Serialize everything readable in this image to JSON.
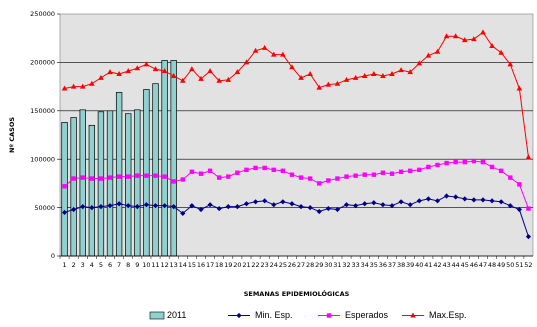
{
  "chart_data": {
    "type": "bar",
    "xlabel": "SEMANAS EPIDEMIOLÓGICAS",
    "ylabel": "Nº CASOS",
    "ylim": [
      0,
      250000
    ],
    "yticks": [
      "0",
      "50000",
      "100000",
      "150000",
      "200000",
      "250000"
    ],
    "grid": true,
    "legend_position": "bottom",
    "categories": [
      "1",
      "2",
      "3",
      "4",
      "5",
      "6",
      "7",
      "8",
      "9",
      "10",
      "11",
      "12",
      "13",
      "14",
      "15",
      "16",
      "17",
      "18",
      "19",
      "20",
      "21",
      "22",
      "23",
      "24",
      "25",
      "26",
      "27",
      "28",
      "29",
      "30",
      "31",
      "32",
      "33",
      "34",
      "35",
      "36",
      "37",
      "38",
      "39",
      "40",
      "41",
      "42",
      "43",
      "44",
      "45",
      "46",
      "47",
      "48",
      "49",
      "50",
      "51",
      "52"
    ],
    "bar_series": {
      "name": "2011",
      "color": "#8fd1cf",
      "values": [
        138000,
        143000,
        151000,
        135000,
        149000,
        150000,
        169000,
        147000,
        151000,
        172000,
        178000,
        202000,
        202000
      ]
    },
    "series": [
      {
        "name": "Min. Esp.",
        "color": "#00008b",
        "marker": "diamond",
        "values": [
          45000,
          48000,
          51000,
          50000,
          51000,
          52000,
          54000,
          52000,
          51000,
          53000,
          52000,
          52000,
          51000,
          44000,
          52000,
          48000,
          53000,
          49000,
          51000,
          51000,
          54000,
          56000,
          57000,
          53000,
          56000,
          54000,
          51000,
          50000,
          46000,
          49000,
          48000,
          53000,
          52000,
          54000,
          55000,
          53000,
          52000,
          56000,
          53000,
          57000,
          59000,
          57000,
          62000,
          61000,
          59000,
          58000,
          58000,
          57000,
          56000,
          52000,
          48000,
          20000
        ]
      },
      {
        "name": "Esperados",
        "color": "#ff00ff",
        "marker": "square",
        "values": [
          72000,
          80000,
          81000,
          80000,
          80000,
          81000,
          82000,
          82000,
          83000,
          83000,
          83000,
          82000,
          77000,
          79000,
          87000,
          85000,
          88000,
          81000,
          82000,
          86000,
          89000,
          91000,
          91000,
          89000,
          88000,
          84000,
          81000,
          80000,
          75000,
          78000,
          80000,
          82000,
          83000,
          84000,
          84000,
          86000,
          85000,
          87000,
          88000,
          89000,
          92000,
          94000,
          96000,
          97000,
          97000,
          98000,
          97000,
          92000,
          88000,
          81000,
          74000,
          49000
        ]
      },
      {
        "name": "Max.Esp.",
        "color": "#ff0000",
        "marker": "triangle",
        "values": [
          173000,
          175000,
          175000,
          178000,
          184000,
          190000,
          188000,
          191000,
          194000,
          198000,
          193000,
          191000,
          186000,
          181000,
          193000,
          183000,
          191000,
          181000,
          182000,
          190000,
          200000,
          212000,
          215000,
          208000,
          208000,
          195000,
          184000,
          188000,
          174000,
          177000,
          178000,
          182000,
          184000,
          186000,
          188000,
          186000,
          188000,
          192000,
          190000,
          199000,
          207000,
          211000,
          227000,
          227000,
          223000,
          224000,
          231000,
          217000,
          210000,
          198000,
          173000,
          102000
        ]
      }
    ]
  }
}
